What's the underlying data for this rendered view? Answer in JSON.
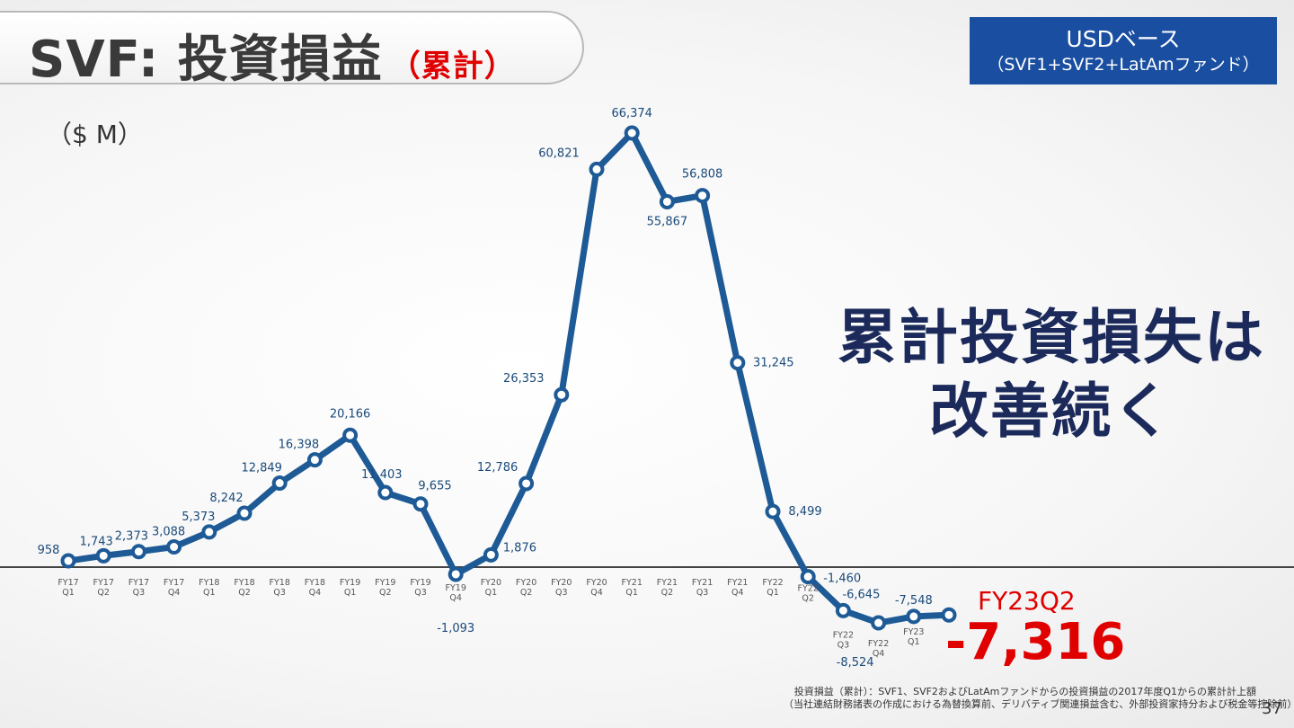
{
  "title": {
    "main": "SVF: 投資損益",
    "sub": "（累計）"
  },
  "badge": {
    "line1": "USDベース",
    "line2": "（SVF1+SVF2+LatAmファンド）"
  },
  "unit_label": "（$ M）",
  "callout": {
    "line1": "累計投資損失は",
    "line2": "改善続く"
  },
  "highlight": {
    "period": "FY23Q2",
    "value": "-7,316"
  },
  "footnote": {
    "line1": "投資損益（累計）：SVF1、SVF2およびLatAmファンドからの投資損益の2017年度Q1からの累計計上額",
    "line2": "（当社連結財務諸表の作成における為替換算前、デリバティブ関連損益含む、外部投資家持分および税金等控除前）"
  },
  "page_number": "37",
  "colors": {
    "line": "#1e5a96",
    "accent_red": "#e00000",
    "badge_bg": "#1a4ea0",
    "callout_text": "#1b2a5a"
  },
  "chart_data": {
    "type": "line",
    "ylabel": "（$ M）",
    "ylim": [
      -12000,
      70000
    ],
    "zero_line": true,
    "categories": [
      [
        "FY17",
        "Q1"
      ],
      [
        "FY17",
        "Q2"
      ],
      [
        "FY17",
        "Q3"
      ],
      [
        "FY17",
        "Q4"
      ],
      [
        "FY18",
        "Q1"
      ],
      [
        "FY18",
        "Q2"
      ],
      [
        "FY18",
        "Q3"
      ],
      [
        "FY18",
        "Q4"
      ],
      [
        "FY19",
        "Q1"
      ],
      [
        "FY19",
        "Q2"
      ],
      [
        "FY19",
        "Q3"
      ],
      [
        "FY19",
        "Q4"
      ],
      [
        "FY20",
        "Q1"
      ],
      [
        "FY20",
        "Q2"
      ],
      [
        "FY20",
        "Q3"
      ],
      [
        "FY20",
        "Q4"
      ],
      [
        "FY21",
        "Q1"
      ],
      [
        "FY21",
        "Q2"
      ],
      [
        "FY21",
        "Q3"
      ],
      [
        "FY21",
        "Q4"
      ],
      [
        "FY22",
        "Q1"
      ],
      [
        "FY22",
        "Q2"
      ],
      [
        "FY22",
        "Q3"
      ],
      [
        "FY22",
        "Q4"
      ],
      [
        "FY23",
        "Q1"
      ],
      [
        "FY23",
        "Q2"
      ]
    ],
    "series": [
      {
        "values": [
          958,
          1743,
          2373,
          3088,
          5373,
          8242,
          12849,
          16398,
          20166,
          11403,
          9655,
          -1093,
          1876,
          12786,
          26353,
          60821,
          66374,
          55867,
          56808,
          31245,
          8499,
          -1460,
          -6645,
          -8524,
          -7548,
          -7316
        ],
        "labels": [
          "958",
          "1,743",
          "2,373",
          "3,088",
          "5,373",
          "8,242",
          "12,849",
          "16,398",
          "20,166",
          "11,403",
          "9,655",
          "-1,093",
          "1,876",
          "12,786",
          "26,353",
          "60,821",
          "66,374",
          "55,867",
          "56,808",
          "31,245",
          "8,499",
          "-1,460",
          "-6,645",
          "-8,524",
          "-7,548",
          ""
        ]
      }
    ]
  }
}
